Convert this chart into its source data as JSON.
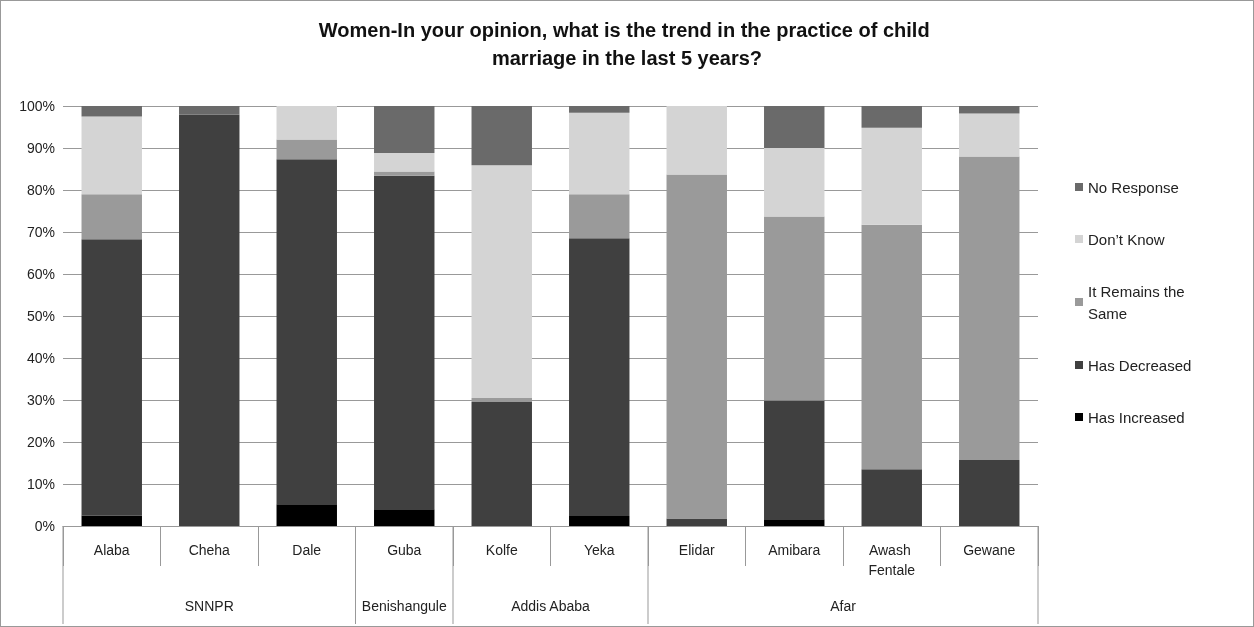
{
  "chart_data": {
    "type": "bar",
    "stacked": true,
    "title": "Women-In your opinion, what is the trend in the practice of child marriage in the last 5 years?",
    "categories": [
      "Alaba",
      "Cheha",
      "Dale",
      "Guba",
      "Kolfe",
      "Yeka",
      "Elidar",
      "Amibara",
      "Awash Fentale",
      "Gewane"
    ],
    "series": [
      {
        "name": "Has Increased",
        "color": "#000000",
        "values": [
          2.5,
          0,
          5.2,
          4.0,
          0,
          2.4,
          0,
          1.6,
          0,
          0
        ]
      },
      {
        "name": "Has Decreased",
        "color": "#404040",
        "values": [
          65.8,
          97.9,
          82.1,
          79.4,
          29.5,
          66.1,
          1.8,
          28.3,
          13.5,
          15.7
        ]
      },
      {
        "name": "It Remains the Same",
        "color": "#9a9a9a",
        "values": [
          10.7,
          0,
          4.7,
          1.0,
          1.0,
          10.5,
          81.9,
          43.8,
          58.2,
          72.3
        ]
      },
      {
        "name": "Don’t Know",
        "color": "#d4d4d4",
        "values": [
          18.5,
          0,
          8.0,
          4.4,
          55.4,
          19.4,
          16.3,
          16.3,
          23.1,
          10.2
        ]
      },
      {
        "name": "No Response",
        "color": "#6a6a6a",
        "values": [
          2.5,
          2.1,
          0,
          11.2,
          14.1,
          1.6,
          0,
          10.0,
          5.2,
          1.8
        ]
      }
    ],
    "ylim": [
      0,
      100
    ],
    "yticks": [
      {
        "value": 0,
        "label": "0%"
      },
      {
        "value": 10,
        "label": "10%"
      },
      {
        "value": 20,
        "label": "20%"
      },
      {
        "value": 30,
        "label": "30%"
      },
      {
        "value": 40,
        "label": "40%"
      },
      {
        "value": 50,
        "label": "50%"
      },
      {
        "value": 60,
        "label": "60%"
      },
      {
        "value": 70,
        "label": "70%"
      },
      {
        "value": 80,
        "label": "80%"
      },
      {
        "value": 90,
        "label": "90%"
      },
      {
        "value": 100,
        "label": "100%"
      }
    ],
    "grid": "y",
    "legend": "right",
    "annotations": [
      "SNNPR",
      "Benishangule",
      "Addis Ababa",
      "Afar"
    ]
  }
}
